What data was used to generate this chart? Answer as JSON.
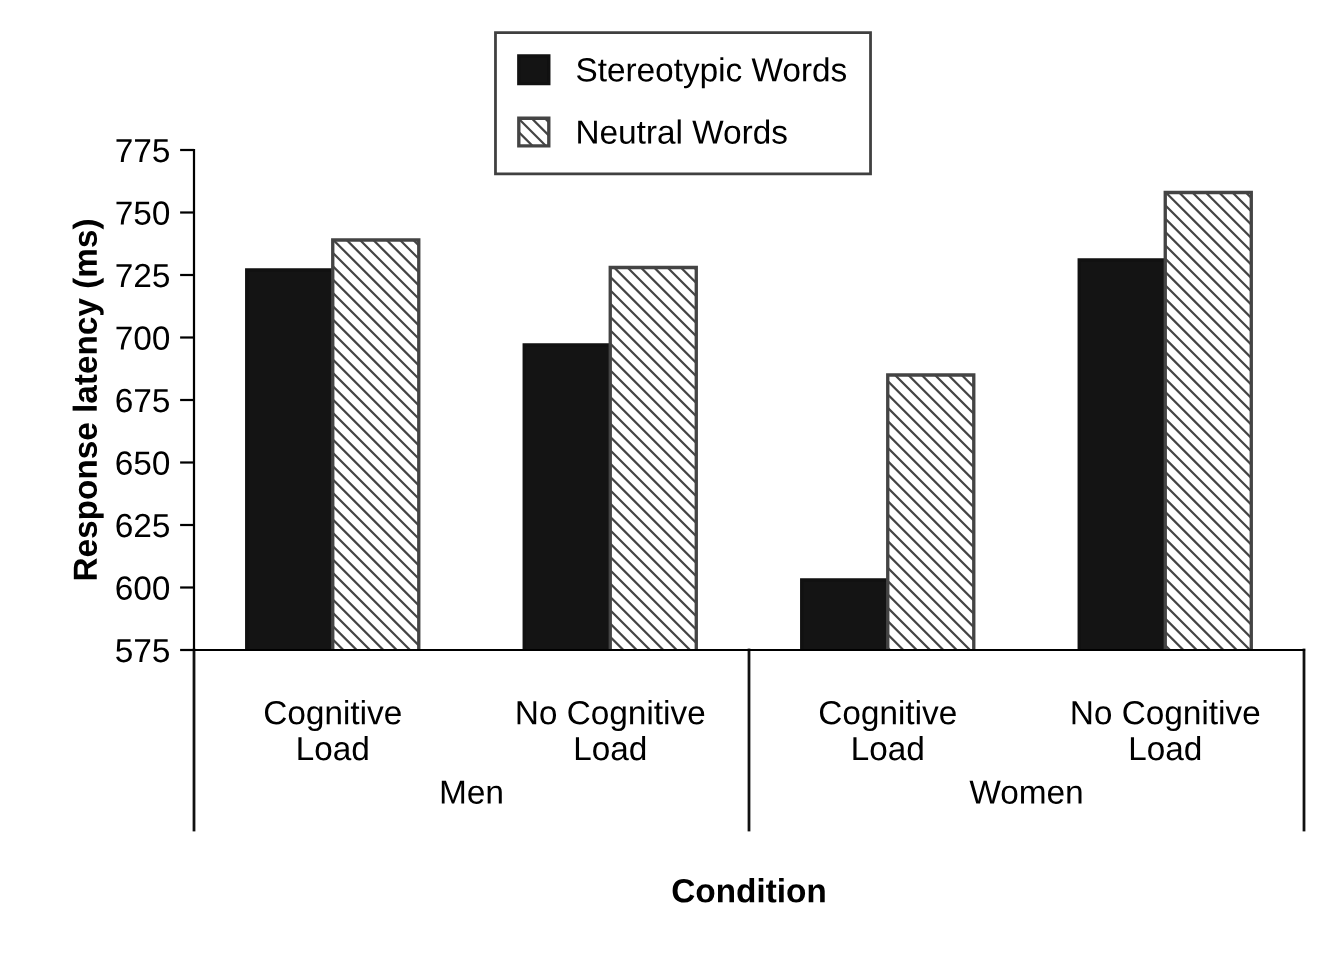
{
  "chart_data": {
    "type": "bar",
    "categories": [
      "Cognitive\nLoad",
      "No Cognitive\nLoad",
      "Cognitive\nLoad",
      "No Cognitive\nLoad"
    ],
    "series": [
      {
        "name": "Stereotypic Words",
        "color": "#141414",
        "values": [
          727,
          697,
          603,
          731
        ]
      },
      {
        "name": "Neutral Words",
        "color": "#444444",
        "values": [
          739,
          728,
          685,
          758
        ]
      }
    ],
    "xlabel": "Condition",
    "ylabel": "Response latency (ms)",
    "annotations": [
      "Men",
      "Women"
    ],
    "ylim": [
      575,
      775
    ],
    "yticks": [
      575,
      600,
      625,
      650,
      675,
      700,
      725,
      750,
      775
    ],
    "grid": false,
    "legend": "top"
  }
}
